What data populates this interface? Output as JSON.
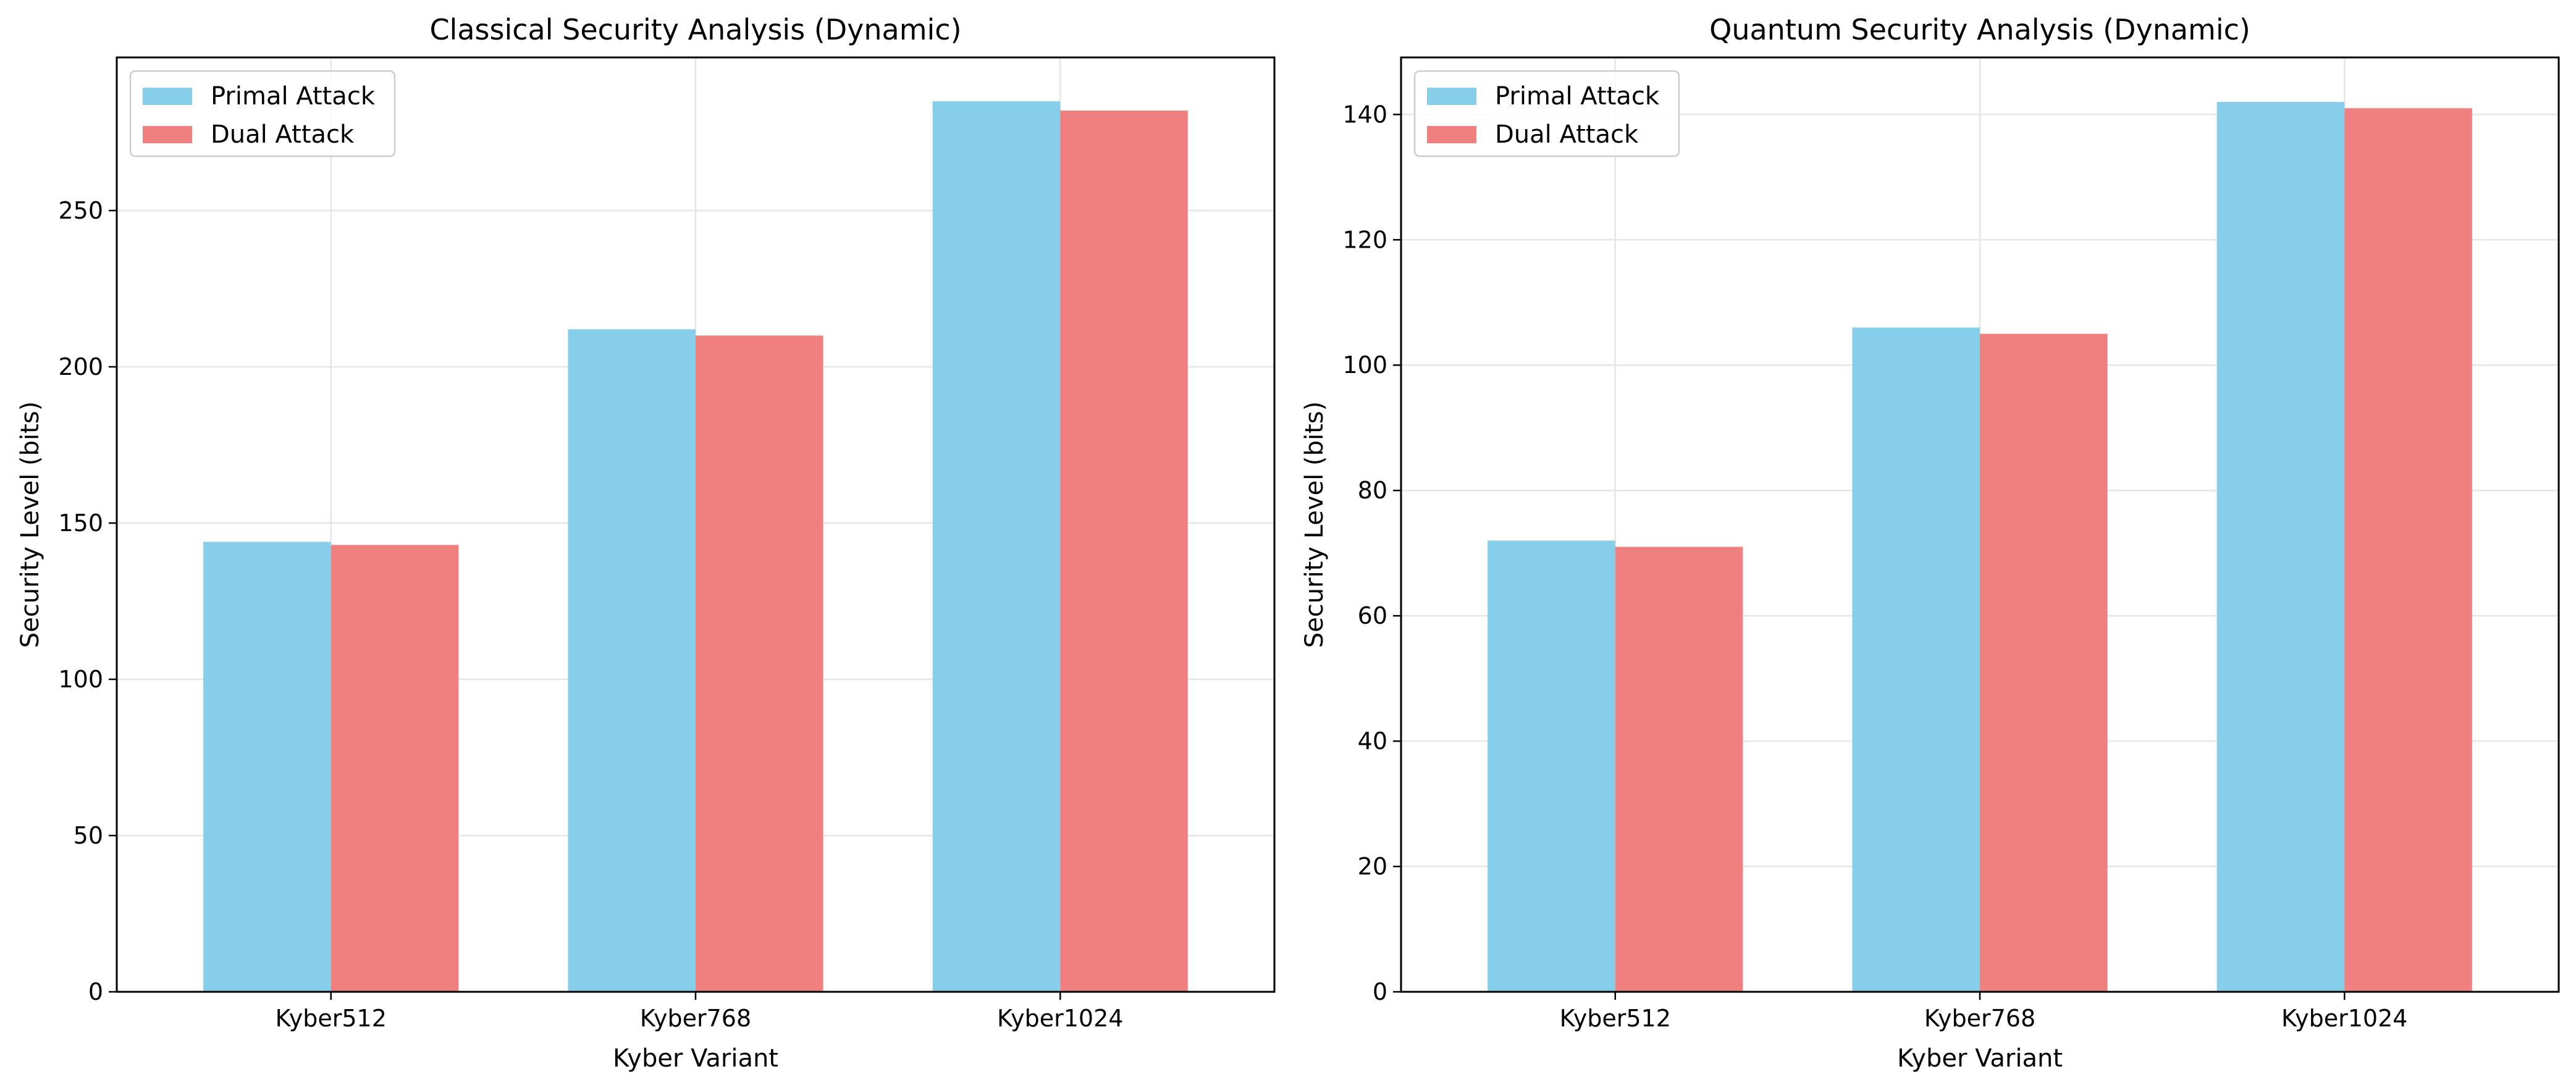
{
  "chart_data": [
    {
      "type": "bar",
      "title": "Classical Security Analysis (Dynamic)",
      "xlabel": "Kyber Variant",
      "ylabel": "Security Level (bits)",
      "categories": [
        "Kyber512",
        "Kyber768",
        "Kyber1024"
      ],
      "series": [
        {
          "name": "Primal Attack",
          "values": [
            144,
            212,
            285
          ],
          "color": "#87CEEB"
        },
        {
          "name": "Dual Attack",
          "values": [
            143,
            210,
            282
          ],
          "color": "#F08080"
        }
      ],
      "ylim": [
        0,
        299
      ],
      "yticks": [
        0,
        50,
        100,
        150,
        200,
        250
      ],
      "grid": true,
      "legend": "top-left"
    },
    {
      "type": "bar",
      "title": "Quantum Security Analysis (Dynamic)",
      "xlabel": "Kyber Variant",
      "ylabel": "Security Level (bits)",
      "categories": [
        "Kyber512",
        "Kyber768",
        "Kyber1024"
      ],
      "series": [
        {
          "name": "Primal Attack",
          "values": [
            72,
            106,
            142
          ],
          "color": "#87CEEB"
        },
        {
          "name": "Dual Attack",
          "values": [
            71,
            105,
            141
          ],
          "color": "#F08080"
        }
      ],
      "ylim": [
        0,
        149.1
      ],
      "yticks": [
        0,
        20,
        40,
        60,
        80,
        100,
        120,
        140
      ],
      "grid": true,
      "legend": "top-left"
    }
  ]
}
